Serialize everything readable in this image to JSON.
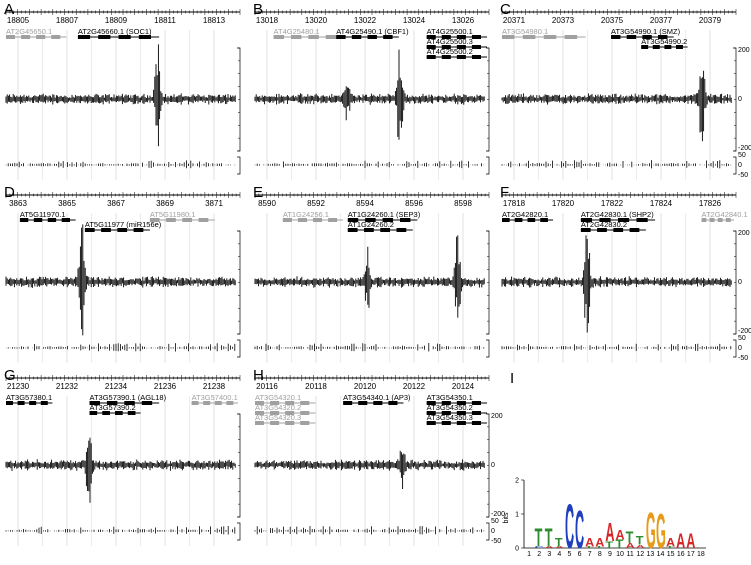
{
  "figure": {
    "panels": [
      {
        "id": "A",
        "label": "A",
        "coordinates": [
          "18805",
          "18807",
          "18809",
          "18811",
          "18813"
        ],
        "genes": [
          {
            "name": "AT2G45650.1",
            "color": "#a0a0a0"
          },
          {
            "name": "AT2G45660.1 (SOC1)",
            "color": "#000000"
          }
        ],
        "show_right_ticks": false
      },
      {
        "id": "B",
        "label": "B",
        "coordinates": [
          "13018",
          "13020",
          "13022",
          "13024",
          "13026"
        ],
        "genes": [
          {
            "name": "AT4G25480.1",
            "color": "#a0a0a0"
          },
          {
            "name": "AT4G25490.1 (CBF1)",
            "color": "#000000"
          },
          {
            "name": "AT4G25500.1",
            "color": "#000000"
          },
          {
            "name": "AT4G25500.3",
            "color": "#000000"
          },
          {
            "name": "AT4G25500.2",
            "color": "#000000"
          }
        ],
        "show_right_ticks": false
      },
      {
        "id": "C",
        "label": "C",
        "coordinates": [
          "20371",
          "20373",
          "20375",
          "20377",
          "20379"
        ],
        "genes": [
          {
            "name": "AT3G54980.1",
            "color": "#a0a0a0"
          },
          {
            "name": "AT3G54990.1 (SMZ)",
            "color": "#000000"
          },
          {
            "name": "AT3G54990.2",
            "color": "#000000"
          }
        ],
        "show_right_ticks": true
      },
      {
        "id": "D",
        "label": "D",
        "coordinates": [
          "3863",
          "3865",
          "3867",
          "3869",
          "3871"
        ],
        "genes": [
          {
            "name": "AT5G11970.1",
            "color": "#000000"
          },
          {
            "name": "AT5G11977 (miR156e)",
            "color": "#000000"
          },
          {
            "name": "AT5G11980.1",
            "color": "#a0a0a0"
          }
        ],
        "show_right_ticks": false
      },
      {
        "id": "E",
        "label": "E",
        "coordinates": [
          "8590",
          "8592",
          "8594",
          "8596",
          "8598"
        ],
        "genes": [
          {
            "name": "AT1G24256.1",
            "color": "#a0a0a0"
          },
          {
            "name": "AT1G24260.1 (SEP3)",
            "color": "#000000"
          },
          {
            "name": "AT1G24260.2",
            "color": "#000000"
          }
        ],
        "show_right_ticks": false
      },
      {
        "id": "F",
        "label": "F",
        "coordinates": [
          "17818",
          "17820",
          "17822",
          "17824",
          "17826"
        ],
        "genes": [
          {
            "name": "AT2G42820.1",
            "color": "#000000"
          },
          {
            "name": "AT2G42830.1 (SHP2)",
            "color": "#000000"
          },
          {
            "name": "AT2G42830.2",
            "color": "#000000"
          },
          {
            "name": "AT2G42840.1",
            "color": "#a0a0a0"
          }
        ],
        "show_right_ticks": true
      },
      {
        "id": "G",
        "label": "G",
        "coordinates": [
          "21230",
          "21232",
          "21234",
          "21236",
          "21238"
        ],
        "genes": [
          {
            "name": "AT3G57380.1",
            "color": "#000000"
          },
          {
            "name": "AT3G57390.1 (AGL18)",
            "color": "#000000"
          },
          {
            "name": "AT3G57390.2",
            "color": "#000000"
          },
          {
            "name": "AT3G57400.1",
            "color": "#a0a0a0"
          }
        ],
        "show_right_ticks": false
      },
      {
        "id": "H",
        "label": "H",
        "coordinates": [
          "20116",
          "20118",
          "20120",
          "20122",
          "20124"
        ],
        "genes": [
          {
            "name": "AT3G54320.1",
            "color": "#a0a0a0"
          },
          {
            "name": "AT3G54320.2",
            "color": "#a0a0a0"
          },
          {
            "name": "AT3G54320.3",
            "color": "#a0a0a0"
          },
          {
            "name": "AT3G54340.1 (AP3)",
            "color": "#000000"
          },
          {
            "name": "AT3G54350.1",
            "color": "#000000"
          },
          {
            "name": "AT3G54350.2",
            "color": "#000000"
          },
          {
            "name": "AT3G54350.3",
            "color": "#000000"
          }
        ],
        "show_right_ticks": true
      }
    ],
    "right_axis": {
      "main_ticks": [
        "200",
        "0",
        "-200"
      ],
      "lower_ticks": [
        "50",
        "0",
        "-50"
      ]
    },
    "logo": {
      "label": "I",
      "ylabel": "bits",
      "y_ticks": [
        "0",
        "1",
        "2"
      ],
      "x_ticks": [
        "1",
        "2",
        "3",
        "4",
        "5",
        "6",
        "7",
        "8",
        "9",
        "10",
        "11",
        "12",
        "13",
        "14",
        "15",
        "16",
        "17",
        "18"
      ],
      "colors": {
        "A": "#d62728",
        "C": "#1f3fbf",
        "G": "#e69c1a",
        "T": "#2e8b2e"
      },
      "positions": [
        {
          "letters": []
        },
        {
          "letters": [
            {
              "base": "T",
              "bits": 0.55
            },
            {
              "base": "C",
              "bits": 0.05
            }
          ]
        },
        {
          "letters": [
            {
              "base": "T",
              "bits": 0.55
            },
            {
              "base": "A",
              "bits": 0.05
            }
          ]
        },
        {
          "letters": [
            {
              "base": "T",
              "bits": 0.25
            },
            {
              "base": "A",
              "bits": 0.05
            }
          ]
        },
        {
          "letters": [
            {
              "base": "C",
              "bits": 1.35
            }
          ]
        },
        {
          "letters": [
            {
              "base": "C",
              "bits": 1.15
            }
          ]
        },
        {
          "letters": [
            {
              "base": "A",
              "bits": 0.25
            },
            {
              "base": "T",
              "bits": 0.05
            }
          ]
        },
        {
          "letters": [
            {
              "base": "A",
              "bits": 0.25
            },
            {
              "base": "T",
              "bits": 0.05
            }
          ]
        },
        {
          "letters": [
            {
              "base": "A",
              "bits": 0.55
            },
            {
              "base": "T",
              "bits": 0.2
            }
          ]
        },
        {
          "letters": [
            {
              "base": "A",
              "bits": 0.3
            },
            {
              "base": "T",
              "bits": 0.25
            }
          ]
        },
        {
          "letters": [
            {
              "base": "T",
              "bits": 0.35
            },
            {
              "base": "A",
              "bits": 0.15
            }
          ]
        },
        {
          "letters": [
            {
              "base": "T",
              "bits": 0.25
            },
            {
              "base": "A",
              "bits": 0.1
            }
          ]
        },
        {
          "letters": [
            {
              "base": "G",
              "bits": 1.1
            }
          ]
        },
        {
          "letters": [
            {
              "base": "G",
              "bits": 1.05
            }
          ]
        },
        {
          "letters": [
            {
              "base": "A",
              "bits": 0.25
            },
            {
              "base": "T",
              "bits": 0.05
            }
          ]
        },
        {
          "letters": [
            {
              "base": "A",
              "bits": 0.45
            }
          ]
        },
        {
          "letters": [
            {
              "base": "A",
              "bits": 0.45
            }
          ]
        },
        {
          "letters": []
        }
      ]
    }
  }
}
